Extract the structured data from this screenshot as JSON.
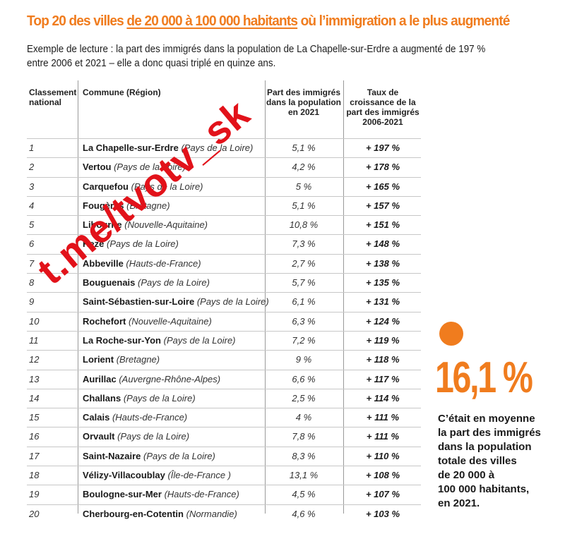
{
  "header": {
    "title_pre": "Top 20 des villes ",
    "title_underlined": "de 20 000 à 100 000 habitants",
    "title_post": " où l’immigration a le plus augmenté",
    "reading_line1": "Exemple de lecture : la part des immigrés dans la population de La Chapelle-sur-Erdre a augmenté de 197 %",
    "reading_line2": "entre 2006 et 2021 – elle a donc quasi triplé en quinze ans."
  },
  "table": {
    "headers": {
      "rank": "Classement national",
      "commune": "Commune (Région)",
      "part": "Part des immigrés dans la population en 2021",
      "taux": "Taux de croissance de la part des immigrés 2006-2021"
    },
    "rows": [
      {
        "rank": "1",
        "city": "La Chapelle-sur-Erdre",
        "region": "(Pays de la Loire)",
        "part": "5,1 %",
        "taux": "+ 197 %"
      },
      {
        "rank": "2",
        "city": "Vertou",
        "region": "(Pays de la Loire)",
        "part": "4,2 %",
        "taux": "+ 178 %"
      },
      {
        "rank": "3",
        "city": "Carquefou",
        "region": "(Pays de la Loire)",
        "part": "5 %",
        "taux": "+ 165 %"
      },
      {
        "rank": "4",
        "city": "Fougères",
        "region": "(Bretagne)",
        "part": "5,1 %",
        "taux": "+ 157 %"
      },
      {
        "rank": "5",
        "city": "Libourne",
        "region": "(Nouvelle-Aquitaine)",
        "part": "10,8 %",
        "taux": "+ 151 %"
      },
      {
        "rank": "6",
        "city": "Rezé",
        "region": "(Pays de la Loire)",
        "part": "7,3 %",
        "taux": "+ 148 %"
      },
      {
        "rank": "7",
        "city": "Abbeville",
        "region": "(Hauts-de-France)",
        "part": "2,7 %",
        "taux": "+ 138 %"
      },
      {
        "rank": "8",
        "city": "Bouguenais",
        "region": "(Pays de la Loire)",
        "part": "5,7 %",
        "taux": "+ 135 %"
      },
      {
        "rank": "9",
        "city": "Saint-Sébastien-sur-Loire",
        "region": "(Pays de la Loire)",
        "part": "6,1 %",
        "taux": "+ 131 %"
      },
      {
        "rank": "10",
        "city": "Rochefort",
        "region": "(Nouvelle-Aquitaine)",
        "part": "6,3 %",
        "taux": "+ 124 %"
      },
      {
        "rank": "11",
        "city": "La Roche-sur-Yon",
        "region": "(Pays de la Loire)",
        "part": "7,2 %",
        "taux": "+ 119 %"
      },
      {
        "rank": "12",
        "city": "Lorient",
        "region": "(Bretagne)",
        "part": "9 %",
        "taux": "+ 118 %"
      },
      {
        "rank": "13",
        "city": "Aurillac",
        "region": "(Auvergne-Rhône-Alpes)",
        "part": "6,6 %",
        "taux": "+ 117 %"
      },
      {
        "rank": "14",
        "city": "Challans",
        "region": "(Pays de la Loire)",
        "part": "2,5 %",
        "taux": "+ 114 %"
      },
      {
        "rank": "15",
        "city": "Calais",
        "region": "(Hauts-de-France)",
        "part": "4 %",
        "taux": "+ 111 %"
      },
      {
        "rank": "16",
        "city": "Orvault",
        "region": "(Pays de la Loire)",
        "part": "7,8 %",
        "taux": "+ 111 %"
      },
      {
        "rank": "17",
        "city": "Saint-Nazaire",
        "region": "(Pays de la Loire)",
        "part": "8,3 %",
        "taux": "+ 110 %"
      },
      {
        "rank": "18",
        "city": "Vélizy-Villacoublay",
        "region": "(Île-de-France )",
        "part": "13,1 %",
        "taux": "+ 108 %"
      },
      {
        "rank": "19",
        "city": "Boulogne-sur-Mer",
        "region": "(Hauts-de-France)",
        "part": "4,5 %",
        "taux": "+ 107 %"
      },
      {
        "rank": "20",
        "city": "Cherbourg-en-Cotentin",
        "region": "(Normandie)",
        "part": "4,6 %",
        "taux": "+ 103 %"
      }
    ]
  },
  "stat": {
    "value": "16,1 %",
    "line1": "C’était en moyenne",
    "line2": "la part des immigrés",
    "line3": "dans la population",
    "line4": "totale des villes",
    "line5": "de 20 000 à",
    "line6": "100 000 habitants,",
    "line7": "en 2021."
  },
  "watermark": {
    "text": "t.me/tvotv_sk"
  },
  "colors": {
    "accent": "#f07c1e",
    "watermark": "#e2121a"
  }
}
